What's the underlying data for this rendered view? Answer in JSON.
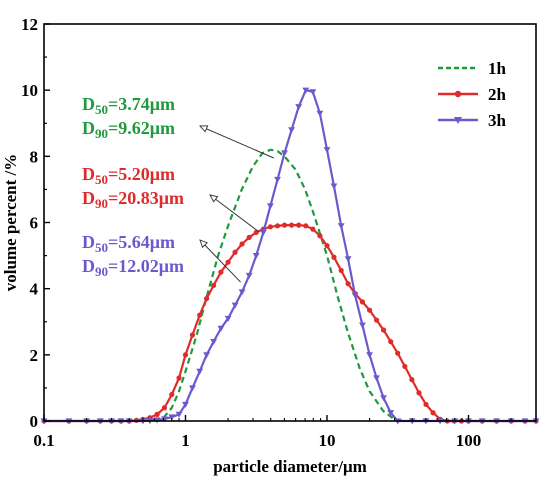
{
  "chart_data": {
    "type": "line",
    "xscale": "log",
    "xlim": [
      0.1,
      300
    ],
    "ylim": [
      0,
      12
    ],
    "xlabel": "particle diameter/μm",
    "ylabel": "volume percent /%",
    "xticks": [
      0.1,
      1,
      10,
      100
    ],
    "xtick_labels": [
      "0.1",
      "1",
      "10",
      "100"
    ],
    "yticks": [
      0,
      2,
      4,
      6,
      8,
      10,
      12
    ],
    "ytick_labels": [
      "0",
      "2",
      "4",
      "6",
      "8",
      "10",
      "12"
    ],
    "legend_position": "top-right",
    "series": [
      {
        "name": "1h",
        "color": "#1f9a3c",
        "style": "dashed",
        "marker": "none",
        "points": [
          [
            0.6,
            0
          ],
          [
            0.7,
            0.1
          ],
          [
            0.8,
            0.4
          ],
          [
            0.9,
            0.9
          ],
          [
            1.0,
            1.5
          ],
          [
            1.2,
            2.6
          ],
          [
            1.4,
            3.7
          ],
          [
            1.7,
            5.0
          ],
          [
            2.0,
            5.9
          ],
          [
            2.5,
            7.0
          ],
          [
            3.0,
            7.7
          ],
          [
            3.5,
            8.1
          ],
          [
            4.0,
            8.2
          ],
          [
            4.5,
            8.15
          ],
          [
            5.0,
            8.0
          ],
          [
            6.0,
            7.6
          ],
          [
            7.0,
            7.0
          ],
          [
            8.0,
            6.3
          ],
          [
            10.0,
            5.0
          ],
          [
            12.0,
            3.7
          ],
          [
            14.0,
            2.7
          ],
          [
            17.0,
            1.6
          ],
          [
            20.0,
            0.9
          ],
          [
            25.0,
            0.3
          ],
          [
            30.0,
            0.05
          ],
          [
            35.0,
            0
          ]
        ]
      },
      {
        "name": "2h",
        "color": "#e02b2b",
        "style": "solid",
        "marker": "circle",
        "points": [
          [
            0.1,
            0
          ],
          [
            0.15,
            0
          ],
          [
            0.2,
            0
          ],
          [
            0.25,
            0
          ],
          [
            0.3,
            0
          ],
          [
            0.35,
            0
          ],
          [
            0.4,
            0
          ],
          [
            0.45,
            0.02
          ],
          [
            0.5,
            0.05
          ],
          [
            0.56,
            0.1
          ],
          [
            0.63,
            0.2
          ],
          [
            0.71,
            0.4
          ],
          [
            0.8,
            0.8
          ],
          [
            0.9,
            1.3
          ],
          [
            1.0,
            2.0
          ],
          [
            1.12,
            2.6
          ],
          [
            1.26,
            3.2
          ],
          [
            1.41,
            3.7
          ],
          [
            1.58,
            4.1
          ],
          [
            1.78,
            4.5
          ],
          [
            2.0,
            4.8
          ],
          [
            2.24,
            5.1
          ],
          [
            2.51,
            5.35
          ],
          [
            2.82,
            5.55
          ],
          [
            3.16,
            5.7
          ],
          [
            3.55,
            5.8
          ],
          [
            3.98,
            5.87
          ],
          [
            4.47,
            5.9
          ],
          [
            5.01,
            5.92
          ],
          [
            5.62,
            5.92
          ],
          [
            6.31,
            5.92
          ],
          [
            7.08,
            5.9
          ],
          [
            7.94,
            5.8
          ],
          [
            8.91,
            5.6
          ],
          [
            10.0,
            5.3
          ],
          [
            11.2,
            4.95
          ],
          [
            12.6,
            4.55
          ],
          [
            14.1,
            4.15
          ],
          [
            15.8,
            3.85
          ],
          [
            17.8,
            3.6
          ],
          [
            20.0,
            3.35
          ],
          [
            22.4,
            3.05
          ],
          [
            25.1,
            2.75
          ],
          [
            28.2,
            2.4
          ],
          [
            31.6,
            2.05
          ],
          [
            35.5,
            1.65
          ],
          [
            39.8,
            1.25
          ],
          [
            44.7,
            0.85
          ],
          [
            50.1,
            0.5
          ],
          [
            56.2,
            0.25
          ],
          [
            63.1,
            0.05
          ],
          [
            70.8,
            0
          ],
          [
            79.4,
            0
          ],
          [
            89.1,
            0
          ],
          [
            100,
            0
          ],
          [
            125,
            0
          ],
          [
            158,
            0
          ],
          [
            200,
            0
          ],
          [
            251,
            0
          ],
          [
            300,
            0
          ]
        ]
      },
      {
        "name": "3h",
        "color": "#6a5acd",
        "style": "solid",
        "marker": "triangle-down",
        "points": [
          [
            0.1,
            0
          ],
          [
            0.15,
            0
          ],
          [
            0.2,
            0
          ],
          [
            0.25,
            0
          ],
          [
            0.3,
            0
          ],
          [
            0.35,
            0
          ],
          [
            0.4,
            0
          ],
          [
            0.5,
            0
          ],
          [
            0.56,
            0.01
          ],
          [
            0.63,
            0.03
          ],
          [
            0.71,
            0.06
          ],
          [
            0.8,
            0.12
          ],
          [
            0.9,
            0.2
          ],
          [
            1.0,
            0.5
          ],
          [
            1.12,
            1.0
          ],
          [
            1.26,
            1.5
          ],
          [
            1.41,
            2.0
          ],
          [
            1.58,
            2.4
          ],
          [
            1.78,
            2.8
          ],
          [
            2.0,
            3.1
          ],
          [
            2.24,
            3.5
          ],
          [
            2.51,
            3.9
          ],
          [
            2.82,
            4.4
          ],
          [
            3.16,
            5.0
          ],
          [
            3.55,
            5.7
          ],
          [
            3.98,
            6.5
          ],
          [
            4.47,
            7.3
          ],
          [
            5.01,
            8.1
          ],
          [
            5.62,
            8.8
          ],
          [
            6.31,
            9.5
          ],
          [
            7.08,
            10.0
          ],
          [
            7.94,
            9.95
          ],
          [
            8.91,
            9.3
          ],
          [
            10.0,
            8.2
          ],
          [
            11.2,
            7.1
          ],
          [
            12.6,
            5.9
          ],
          [
            14.1,
            4.9
          ],
          [
            15.8,
            3.8
          ],
          [
            17.8,
            2.9
          ],
          [
            20.0,
            2.0
          ],
          [
            22.4,
            1.3
          ],
          [
            25.1,
            0.7
          ],
          [
            28.2,
            0.25
          ],
          [
            31.6,
            0
          ],
          [
            40,
            0
          ],
          [
            50,
            0
          ],
          [
            63,
            0
          ],
          [
            80,
            0
          ],
          [
            100,
            0
          ],
          [
            125,
            0
          ],
          [
            158,
            0
          ],
          [
            200,
            0
          ],
          [
            251,
            0
          ],
          [
            300,
            0
          ]
        ]
      }
    ],
    "annotations": [
      {
        "color": "#1f9a3c",
        "d50_prefix": "D",
        "d50_sub": "50",
        "d50_value": "=3.74μm",
        "d90_prefix": "D",
        "d90_sub": "90",
        "d90_value": "=9.62μm",
        "arrow_to": [
          4.2,
          7.95
        ]
      },
      {
        "color": "#e02b2b",
        "d50_prefix": "D",
        "d50_sub": "50",
        "d50_value": "=5.20μm",
        "d90_prefix": "D",
        "d90_sub": "90",
        "d90_value": "=20.83μm",
        "arrow_to": [
          3.3,
          5.72
        ]
      },
      {
        "color": "#6a5acd",
        "d50_prefix": "D",
        "d50_sub": "50",
        "d50_value": "=5.64μm",
        "d90_prefix": "D",
        "d90_sub": "90",
        "d90_value": "=12.02μm",
        "arrow_to": [
          2.45,
          4.2
        ]
      }
    ]
  }
}
